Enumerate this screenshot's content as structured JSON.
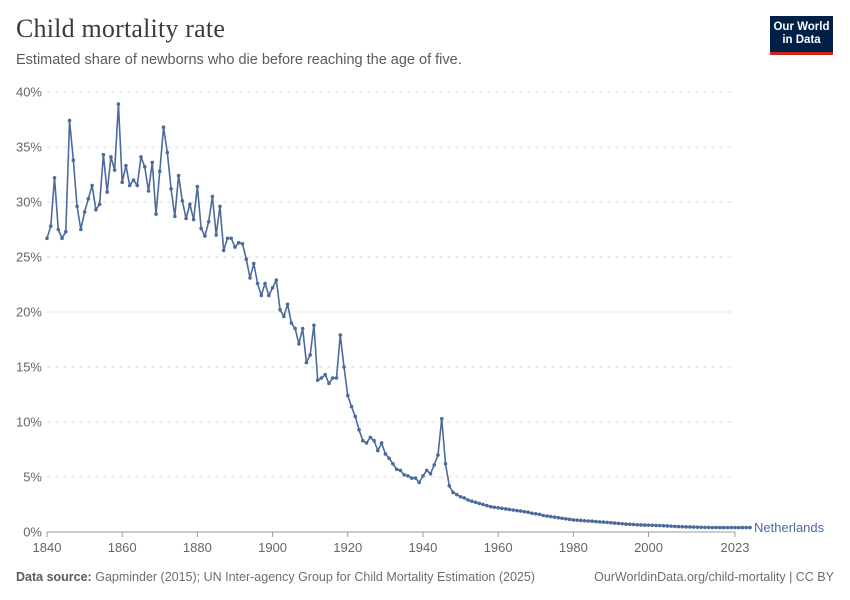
{
  "header": {
    "title": "Child mortality rate",
    "subtitle": "Estimated share of newborns who die before reaching the age of five.",
    "logo_line1": "Our World",
    "logo_line2": "in Data"
  },
  "footer": {
    "source_label": "Data source:",
    "source_text": "Gapminder (2015); UN Inter-agency Group for Child Mortality Estimation (2025)",
    "url_license": "OurWorldinData.org/child-mortality | CC BY"
  },
  "colors": {
    "series": "#4c6a9c",
    "grid": "#dddddd",
    "axis": "#666666"
  },
  "chart_data": {
    "type": "line",
    "title": "Child mortality rate",
    "subtitle": "Estimated share of newborns who die before reaching the age of five.",
    "xlabel": "",
    "ylabel": "",
    "xlim": [
      1840,
      2023
    ],
    "ylim": [
      0,
      40
    ],
    "y_ticks": [
      0,
      5,
      10,
      15,
      20,
      25,
      30,
      35,
      40
    ],
    "y_tick_labels": [
      "0%",
      "5%",
      "10%",
      "15%",
      "20%",
      "25%",
      "30%",
      "35%",
      "40%"
    ],
    "x_ticks": [
      1840,
      1860,
      1880,
      1900,
      1920,
      1940,
      1960,
      1980,
      2000,
      2023
    ],
    "x_tick_labels": [
      "1840",
      "1860",
      "1880",
      "1900",
      "1920",
      "1940",
      "1960",
      "1980",
      "2000",
      "2023"
    ],
    "grid": "horizontal dashed",
    "legend": "end-of-line label",
    "series": [
      {
        "name": "Netherlands",
        "x_start": 1840,
        "x_end": 2023,
        "values": [
          26.7,
          27.8,
          32.2,
          27.5,
          26.7,
          27.3,
          37.4,
          33.8,
          29.6,
          27.5,
          29.1,
          30.3,
          31.5,
          29.3,
          29.8,
          34.3,
          30.9,
          34.1,
          32.9,
          38.9,
          31.8,
          33.3,
          31.5,
          32.0,
          31.5,
          34.1,
          33.2,
          31.0,
          33.6,
          28.9,
          32.8,
          36.8,
          34.5,
          31.2,
          28.7,
          32.4,
          30.1,
          28.5,
          29.8,
          28.4,
          31.4,
          27.6,
          26.9,
          28.2,
          30.5,
          27.0,
          29.6,
          25.6,
          26.7,
          26.7,
          25.9,
          26.3,
          26.2,
          24.8,
          23.1,
          24.4,
          22.6,
          21.5,
          22.6,
          21.5,
          22.2,
          22.9,
          20.2,
          19.6,
          20.7,
          19.0,
          18.5,
          17.1,
          18.5,
          15.4,
          16.1,
          18.8,
          13.8,
          14.0,
          14.3,
          13.5,
          14.0,
          14.0,
          17.9,
          15.0,
          12.4,
          11.4,
          10.5,
          9.3,
          8.3,
          8.1,
          8.6,
          8.3,
          7.4,
          8.1,
          7.1,
          6.7,
          6.2,
          5.7,
          5.6,
          5.2,
          5.1,
          4.9,
          4.9,
          4.5,
          5.1,
          5.6,
          5.3,
          6.1,
          7.0,
          10.3,
          6.2,
          4.2,
          3.6,
          3.4,
          3.2,
          3.1,
          2.9,
          2.8,
          2.7,
          2.6,
          2.5,
          2.4,
          2.3,
          2.25,
          2.2,
          2.15,
          2.1,
          2.05,
          2.0,
          1.95,
          1.9,
          1.85,
          1.8,
          1.7,
          1.65,
          1.6,
          1.5,
          1.45,
          1.4,
          1.35,
          1.3,
          1.25,
          1.2,
          1.15,
          1.1,
          1.08,
          1.05,
          1.02,
          1.0,
          0.98,
          0.95,
          0.92,
          0.9,
          0.87,
          0.84,
          0.81,
          0.78,
          0.75,
          0.72,
          0.7,
          0.68,
          0.66,
          0.64,
          0.63,
          0.62,
          0.61,
          0.6,
          0.59,
          0.57,
          0.55,
          0.53,
          0.51,
          0.49,
          0.48,
          0.47,
          0.46,
          0.45,
          0.44,
          0.43,
          0.42,
          0.42,
          0.41,
          0.41,
          0.4,
          0.4,
          0.4,
          0.4,
          0.4,
          0.4,
          0.4,
          0.4,
          0.4
        ]
      }
    ]
  }
}
